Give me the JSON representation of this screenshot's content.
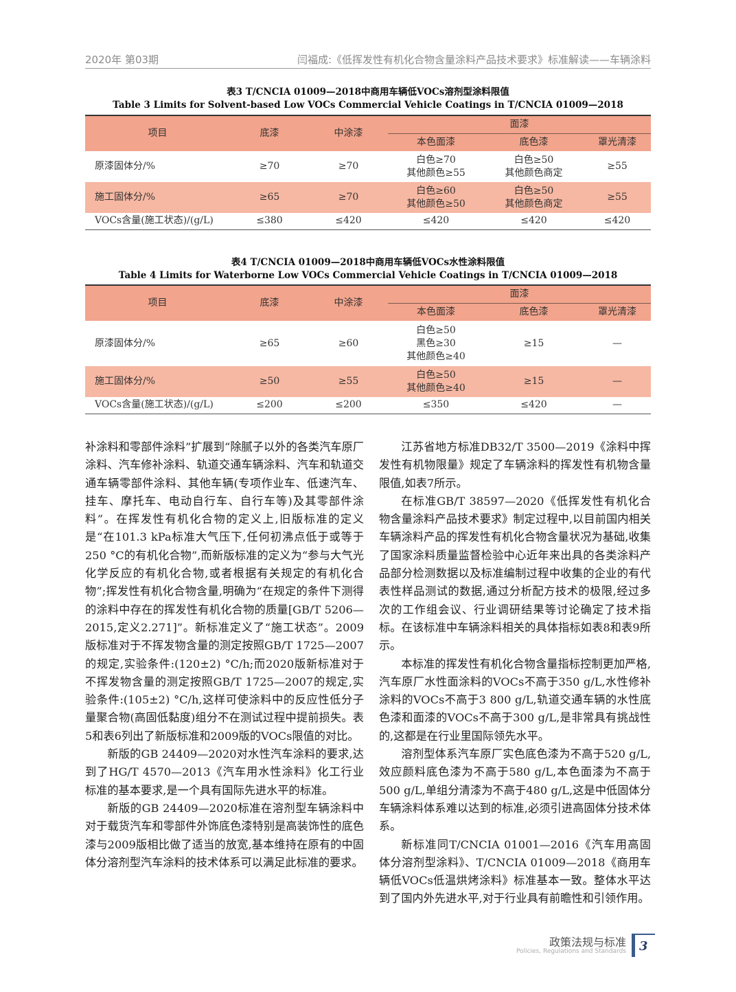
{
  "header": {
    "issue": "2020年 第03期",
    "article": "闫福成:《低挥发性有机化合物含量涂料产品技术要求》标准解读——车辆涂料"
  },
  "colors": {
    "table_header": "#f2a48c",
    "table_shade": "#f6b8a3",
    "footer_accent": "#3b5b8c"
  },
  "table3": {
    "caption_cn": "表3 T/CNCIA 01009—2018中商用车辆低VOCs溶剂型涂料限值",
    "caption_en": "Table 3 Limits for Solvent-based Low VOCs Commercial Vehicle Coatings in T/CNCIA 01009—2018",
    "headers": {
      "item": "项目",
      "primer": "底漆",
      "mid": "中涂漆",
      "top": "面漆",
      "solid": "本色面漆",
      "base": "底色漆",
      "clear": "罩光清漆"
    },
    "rows": [
      {
        "item": "原漆固体分/%",
        "primer": "≥70",
        "mid": "≥70",
        "solid": [
          "白色≥70",
          "其他颜色≥55"
        ],
        "base": [
          "白色≥50",
          "其他颜色商定"
        ],
        "clear": "≥55"
      },
      {
        "item": "施工固体分/%",
        "primer": "≥65",
        "mid": "≥70",
        "solid": [
          "白色≥60",
          "其他颜色≥50"
        ],
        "base": [
          "白色≥50",
          "其他颜色商定"
        ],
        "clear": "≥55"
      },
      {
        "item": "VOCs含量(施工状态)/(g/L)",
        "primer": "≤380",
        "mid": "≤420",
        "solid": [
          "≤420"
        ],
        "base": [
          "≤420"
        ],
        "clear": "≤420"
      }
    ]
  },
  "table4": {
    "caption_cn": "表4 T/CNCIA 01009—2018中商用车辆低VOCs水性涂料限值",
    "caption_en": "Table 4 Limits for Waterborne Low VOCs Commercial Vehicle Coatings in T/CNCIA 01009—2018",
    "headers": {
      "item": "项目",
      "primer": "底漆",
      "mid": "中涂漆",
      "top": "面漆",
      "solid": "本色面漆",
      "base": "底色漆",
      "clear": "罩光清漆"
    },
    "rows": [
      {
        "item": "原漆固体分/%",
        "primer": "≥65",
        "mid": "≥60",
        "solid": [
          "白色≥50",
          "黑色≥30",
          "其他颜色≥40"
        ],
        "base": "≥15",
        "clear": "—"
      },
      {
        "item": "施工固体分/%",
        "primer": "≥50",
        "mid": "≥55",
        "solid": [
          "白色≥50",
          "其他颜色≥40"
        ],
        "base": "≥15",
        "clear": "—"
      },
      {
        "item": "VOCs含量(施工状态)/(g/L)",
        "primer": "≤200",
        "mid": "≤200",
        "solid": [
          "≤350"
        ],
        "base": "≤420",
        "clear": "—"
      }
    ]
  },
  "body": {
    "left": [
      "补涂料和零部件涂料”扩展到“除腻子以外的各类汽车原厂涂料、汽车修补涂料、轨道交通车辆涂料、汽车和轨道交通车辆零部件涂料、其他车辆(专项作业车、低速汽车、挂车、摩托车、电动自行车、自行车等)及其零部件涂料”。在挥发性有机化合物的定义上,旧版标准的定义是“在101.3 kPa标准大气压下,任何初沸点低于或等于250 °C的有机化合物”,而新版标准的定义为“参与大气光化学反应的有机化合物,或者根据有关规定的有机化合物”;挥发性有机化合物含量,明确为“在规定的条件下测得的涂料中存在的挥发性有机化合物的质量[GB/T 5206—2015,定义2.271]”。新标准定义了“施工状态”。2009版标准对于不挥发物含量的测定按照GB/T 1725—2007的规定,实验条件:(120±2) °C/h;而2020版新标准对于不挥发物含量的测定按照GB/T 1725—2007的规定,实验条件:(105±2) °C/h,这样可使涂料中的反应性低分子量聚合物(高固低黏度)组分不在测试过程中提前损失。表5和表6列出了新版标准和2009版的VOCs限值的对比。",
      "新版的GB 24409—2020对水性汽车涂料的要求,达到了HG/T 4570—2013《汽车用水性涂料》化工行业标准的基本要求,是一个具有国际先进水平的标准。",
      "新版的GB 24409—2020标准在溶剂型车辆涂料中对于载货汽车和零部件外饰底色漆特别是高装饰性的底色漆与2009版相比做了适当的放宽,基本维持在原有的中固体分溶剂型汽车涂料的技术体系可以满足此标准的要求。"
    ],
    "right": [
      "江苏省地方标准DB32/T 3500—2019《涂料中挥发性有机物限量》规定了车辆涂料的挥发性有机物含量限值,如表7所示。",
      "在标准GB/T 38597—2020《低挥发性有机化合物含量涂料产品技术要求》制定过程中,以目前国内相关车辆涂料产品的挥发性有机化合物含量状况为基础,收集了国家涂料质量监督检验中心近年来出具的各类涂料产品部分检测数据以及标准编制过程中收集的企业的有代表性样品测试的数据,通过分析配方技术的极限,经过多次的工作组会议、行业调研结果等讨论确定了技术指标。在该标准中车辆涂料相关的具体指标如表8和表9所示。",
      "本标准的挥发性有机化合物含量指标控制更加严格,汽车原厂水性面涂料的VOCs不高于350 g/L,水性修补涂料的VOCs不高于3 800 g/L,轨道交通车辆的水性底色漆和面漆的VOCs不高于300 g/L,是非常具有挑战性的,这都是在行业里国际领先水平。",
      "溶剂型体系汽车原厂实色底色漆为不高于520 g/L,效应颜料底色漆为不高于580 g/L,本色面漆为不高于500 g/L,单组分清漆为不高于480 g/L,这是中低固体分车辆涂料体系难以达到的标准,必须引进高固体分技术体系。",
      "新标准同T/CNCIA 01001—2016《汽车用高固体分溶剂型涂料》、T/CNCIA 01009—2018《商用车辆低VOCs低温烘烤涂料》标准基本一致。整体水平达到了国内外先进水平,对于行业具有前瞻性和引领作用。"
    ]
  },
  "footer": {
    "section_cn": "政策法规与标准",
    "section_en": "Policies, Regulations and Standards",
    "page": "3"
  }
}
